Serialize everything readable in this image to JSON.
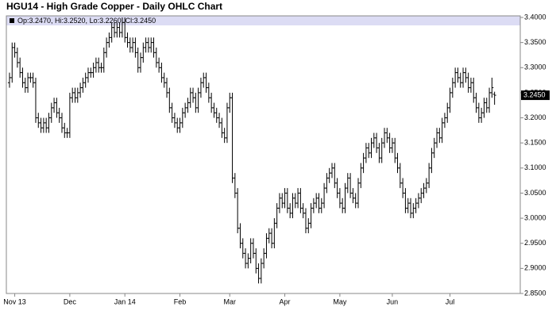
{
  "chart_data": {
    "type": "ohlc",
    "title": "HGU14 - High Grade Copper - Daily OHLC Chart",
    "legend_text": "Op:3.2470, Hi:3.2520, Lo:3.2260, Cl:3.2450",
    "last_price": {
      "value": 3.245,
      "label": "3.2450"
    },
    "color": "#000000",
    "ylim": [
      2.85,
      3.4
    ],
    "yticks": [
      {
        "value": 2.85,
        "label": "2.8500"
      },
      {
        "value": 2.9,
        "label": "2.9000"
      },
      {
        "value": 2.95,
        "label": "2.9500"
      },
      {
        "value": 3.0,
        "label": "3.0000"
      },
      {
        "value": 3.05,
        "label": "3.0500"
      },
      {
        "value": 3.1,
        "label": "3.1000"
      },
      {
        "value": 3.15,
        "label": "3.1500"
      },
      {
        "value": 3.2,
        "label": "3.2000"
      },
      {
        "value": 3.25,
        "label": "3.2500"
      },
      {
        "value": 3.3,
        "label": "3.3000"
      },
      {
        "value": 3.35,
        "label": "3.3500"
      },
      {
        "value": 3.4,
        "label": "3.4000"
      }
    ],
    "xlim": [
      -1.2,
      194.8
    ],
    "xticks": [
      {
        "value": 2,
        "label": "Nov 13"
      },
      {
        "value": 23,
        "label": "Dec"
      },
      {
        "value": 44,
        "label": "Jan 14"
      },
      {
        "value": 65,
        "label": "Feb"
      },
      {
        "value": 84,
        "label": "Mar"
      },
      {
        "value": 105,
        "label": "Apr"
      },
      {
        "value": 126,
        "label": "May"
      },
      {
        "value": 146,
        "label": "Jun"
      },
      {
        "value": 168,
        "label": "Jul"
      }
    ],
    "ohlc": [
      [
        3.27,
        3.29,
        3.26,
        3.28
      ],
      [
        3.28,
        3.35,
        3.27,
        3.34
      ],
      [
        3.34,
        3.35,
        3.32,
        3.33
      ],
      [
        3.33,
        3.34,
        3.3,
        3.31
      ],
      [
        3.31,
        3.32,
        3.28,
        3.29
      ],
      [
        3.29,
        3.3,
        3.26,
        3.27
      ],
      [
        3.27,
        3.28,
        3.25,
        3.26
      ],
      [
        3.26,
        3.29,
        3.25,
        3.28
      ],
      [
        3.28,
        3.29,
        3.27,
        3.28
      ],
      [
        3.28,
        3.29,
        3.26,
        3.27
      ],
      [
        3.27,
        3.28,
        3.19,
        3.2
      ],
      [
        3.2,
        3.21,
        3.18,
        3.19
      ],
      [
        3.19,
        3.2,
        3.17,
        3.18
      ],
      [
        3.18,
        3.2,
        3.17,
        3.19
      ],
      [
        3.19,
        3.2,
        3.17,
        3.18
      ],
      [
        3.18,
        3.21,
        3.17,
        3.2
      ],
      [
        3.2,
        3.23,
        3.19,
        3.22
      ],
      [
        3.22,
        3.24,
        3.21,
        3.23
      ],
      [
        3.23,
        3.24,
        3.2,
        3.21
      ],
      [
        3.21,
        3.22,
        3.19,
        3.2
      ],
      [
        3.2,
        3.21,
        3.17,
        3.18
      ],
      [
        3.18,
        3.19,
        3.16,
        3.17
      ],
      [
        3.17,
        3.18,
        3.16,
        3.17
      ],
      [
        3.17,
        3.25,
        3.16,
        3.24
      ],
      [
        3.24,
        3.26,
        3.23,
        3.25
      ],
      [
        3.25,
        3.26,
        3.23,
        3.24
      ],
      [
        3.24,
        3.26,
        3.23,
        3.25
      ],
      [
        3.25,
        3.27,
        3.24,
        3.26
      ],
      [
        3.26,
        3.28,
        3.25,
        3.27
      ],
      [
        3.27,
        3.29,
        3.26,
        3.28
      ],
      [
        3.28,
        3.3,
        3.27,
        3.29
      ],
      [
        3.29,
        3.3,
        3.28,
        3.29
      ],
      [
        3.29,
        3.31,
        3.28,
        3.3
      ],
      [
        3.3,
        3.32,
        3.29,
        3.31
      ],
      [
        3.31,
        3.32,
        3.29,
        3.3
      ],
      [
        3.3,
        3.31,
        3.29,
        3.3
      ],
      [
        3.3,
        3.34,
        3.29,
        3.33
      ],
      [
        3.33,
        3.36,
        3.32,
        3.35
      ],
      [
        3.35,
        3.37,
        3.34,
        3.36
      ],
      [
        3.36,
        3.39,
        3.35,
        3.38
      ],
      [
        3.38,
        3.39,
        3.36,
        3.37
      ],
      [
        3.37,
        3.39,
        3.36,
        3.38
      ],
      [
        3.38,
        3.39,
        3.36,
        3.37
      ],
      [
        3.37,
        3.4,
        3.36,
        3.39
      ],
      [
        3.39,
        3.4,
        3.35,
        3.36
      ],
      [
        3.36,
        3.37,
        3.34,
        3.35
      ],
      [
        3.35,
        3.36,
        3.33,
        3.34
      ],
      [
        3.34,
        3.36,
        3.33,
        3.35
      ],
      [
        3.35,
        3.36,
        3.32,
        3.33
      ],
      [
        3.33,
        3.34,
        3.29,
        3.3
      ],
      [
        3.3,
        3.33,
        3.29,
        3.32
      ],
      [
        3.32,
        3.35,
        3.31,
        3.34
      ],
      [
        3.34,
        3.36,
        3.33,
        3.35
      ],
      [
        3.35,
        3.36,
        3.33,
        3.34
      ],
      [
        3.34,
        3.36,
        3.33,
        3.35
      ],
      [
        3.35,
        3.36,
        3.32,
        3.33
      ],
      [
        3.33,
        3.34,
        3.3,
        3.31
      ],
      [
        3.31,
        3.32,
        3.29,
        3.3
      ],
      [
        3.3,
        3.31,
        3.27,
        3.28
      ],
      [
        3.28,
        3.29,
        3.26,
        3.27
      ],
      [
        3.27,
        3.28,
        3.24,
        3.25
      ],
      [
        3.25,
        3.26,
        3.21,
        3.22
      ],
      [
        3.22,
        3.23,
        3.19,
        3.2
      ],
      [
        3.2,
        3.21,
        3.18,
        3.19
      ],
      [
        3.19,
        3.2,
        3.17,
        3.18
      ],
      [
        3.18,
        3.2,
        3.17,
        3.19
      ],
      [
        3.19,
        3.22,
        3.18,
        3.21
      ],
      [
        3.21,
        3.23,
        3.2,
        3.22
      ],
      [
        3.22,
        3.24,
        3.21,
        3.23
      ],
      [
        3.23,
        3.26,
        3.22,
        3.25
      ],
      [
        3.25,
        3.26,
        3.23,
        3.24
      ],
      [
        3.24,
        3.25,
        3.21,
        3.22
      ],
      [
        3.22,
        3.26,
        3.21,
        3.25
      ],
      [
        3.25,
        3.28,
        3.24,
        3.27
      ],
      [
        3.27,
        3.29,
        3.26,
        3.28
      ],
      [
        3.28,
        3.29,
        3.25,
        3.26
      ],
      [
        3.26,
        3.27,
        3.23,
        3.24
      ],
      [
        3.24,
        3.25,
        3.21,
        3.22
      ],
      [
        3.22,
        3.23,
        3.2,
        3.21
      ],
      [
        3.21,
        3.22,
        3.19,
        3.2
      ],
      [
        3.2,
        3.21,
        3.18,
        3.19
      ],
      [
        3.19,
        3.2,
        3.16,
        3.17
      ],
      [
        3.17,
        3.18,
        3.15,
        3.16
      ],
      [
        3.16,
        3.23,
        3.15,
        3.22
      ],
      [
        3.22,
        3.25,
        3.21,
        3.24
      ],
      [
        3.24,
        3.25,
        3.07,
        3.08
      ],
      [
        3.08,
        3.09,
        3.04,
        3.05
      ],
      [
        3.05,
        3.06,
        2.97,
        2.98
      ],
      [
        2.98,
        2.99,
        2.94,
        2.95
      ],
      [
        2.95,
        2.96,
        2.92,
        2.93
      ],
      [
        2.93,
        2.94,
        2.9,
        2.91
      ],
      [
        2.91,
        2.93,
        2.9,
        2.92
      ],
      [
        2.92,
        2.96,
        2.91,
        2.95
      ],
      [
        2.95,
        2.96,
        2.92,
        2.93
      ],
      [
        2.93,
        2.94,
        2.89,
        2.9
      ],
      [
        2.9,
        2.91,
        2.87,
        2.88
      ],
      [
        2.88,
        2.92,
        2.87,
        2.91
      ],
      [
        2.91,
        2.94,
        2.9,
        2.93
      ],
      [
        2.93,
        2.97,
        2.92,
        2.96
      ],
      [
        2.96,
        2.98,
        2.95,
        2.97
      ],
      [
        2.97,
        2.98,
        2.94,
        2.95
      ],
      [
        2.95,
        3.0,
        2.94,
        2.99
      ],
      [
        2.99,
        3.03,
        2.98,
        3.02
      ],
      [
        3.02,
        3.05,
        3.01,
        3.04
      ],
      [
        3.04,
        3.05,
        3.02,
        3.03
      ],
      [
        3.03,
        3.06,
        3.02,
        3.05
      ],
      [
        3.05,
        3.06,
        3.01,
        3.02
      ],
      [
        3.02,
        3.03,
        3.0,
        3.01
      ],
      [
        3.01,
        3.05,
        3.0,
        3.04
      ],
      [
        3.04,
        3.05,
        3.02,
        3.03
      ],
      [
        3.03,
        3.06,
        3.02,
        3.05
      ],
      [
        3.05,
        3.06,
        3.01,
        3.02
      ],
      [
        3.02,
        3.03,
        3.0,
        3.01
      ],
      [
        3.01,
        3.02,
        2.97,
        2.98
      ],
      [
        2.98,
        3.0,
        2.97,
        2.99
      ],
      [
        2.99,
        3.03,
        2.98,
        3.02
      ],
      [
        3.02,
        3.04,
        3.01,
        3.03
      ],
      [
        3.03,
        3.05,
        3.02,
        3.04
      ],
      [
        3.04,
        3.05,
        3.01,
        3.02
      ],
      [
        3.02,
        3.04,
        3.01,
        3.03
      ],
      [
        3.03,
        3.07,
        3.02,
        3.06
      ],
      [
        3.06,
        3.09,
        3.05,
        3.08
      ],
      [
        3.08,
        3.1,
        3.07,
        3.09
      ],
      [
        3.09,
        3.11,
        3.08,
        3.1
      ],
      [
        3.1,
        3.11,
        3.06,
        3.07
      ],
      [
        3.07,
        3.08,
        3.04,
        3.05
      ],
      [
        3.05,
        3.06,
        3.02,
        3.03
      ],
      [
        3.03,
        3.04,
        3.01,
        3.02
      ],
      [
        3.02,
        3.07,
        3.01,
        3.06
      ],
      [
        3.06,
        3.09,
        3.05,
        3.08
      ],
      [
        3.08,
        3.09,
        3.04,
        3.05
      ],
      [
        3.05,
        3.06,
        3.03,
        3.04
      ],
      [
        3.04,
        3.05,
        3.02,
        3.03
      ],
      [
        3.03,
        3.08,
        3.02,
        3.07
      ],
      [
        3.07,
        3.11,
        3.06,
        3.1
      ],
      [
        3.1,
        3.13,
        3.09,
        3.12
      ],
      [
        3.12,
        3.15,
        3.11,
        3.14
      ],
      [
        3.14,
        3.15,
        3.12,
        3.13
      ],
      [
        3.13,
        3.16,
        3.12,
        3.15
      ],
      [
        3.15,
        3.17,
        3.14,
        3.16
      ],
      [
        3.16,
        3.17,
        3.13,
        3.14
      ],
      [
        3.14,
        3.15,
        3.11,
        3.12
      ],
      [
        3.12,
        3.16,
        3.11,
        3.15
      ],
      [
        3.15,
        3.18,
        3.14,
        3.17
      ],
      [
        3.17,
        3.18,
        3.15,
        3.16
      ],
      [
        3.16,
        3.17,
        3.13,
        3.14
      ],
      [
        3.14,
        3.16,
        3.13,
        3.15
      ],
      [
        3.15,
        3.16,
        3.11,
        3.12
      ],
      [
        3.12,
        3.13,
        3.09,
        3.1
      ],
      [
        3.1,
        3.11,
        3.06,
        3.07
      ],
      [
        3.07,
        3.08,
        3.04,
        3.05
      ],
      [
        3.05,
        3.06,
        3.01,
        3.02
      ],
      [
        3.02,
        3.04,
        3.01,
        3.03
      ],
      [
        3.03,
        3.04,
        3.0,
        3.01
      ],
      [
        3.01,
        3.03,
        3.0,
        3.02
      ],
      [
        3.02,
        3.04,
        3.01,
        3.03
      ],
      [
        3.03,
        3.05,
        3.02,
        3.04
      ],
      [
        3.04,
        3.06,
        3.03,
        3.05
      ],
      [
        3.05,
        3.07,
        3.04,
        3.06
      ],
      [
        3.06,
        3.08,
        3.05,
        3.07
      ],
      [
        3.07,
        3.11,
        3.06,
        3.1
      ],
      [
        3.1,
        3.14,
        3.09,
        3.13
      ],
      [
        3.13,
        3.16,
        3.12,
        3.15
      ],
      [
        3.15,
        3.18,
        3.14,
        3.17
      ],
      [
        3.17,
        3.18,
        3.15,
        3.16
      ],
      [
        3.16,
        3.2,
        3.15,
        3.19
      ],
      [
        3.19,
        3.21,
        3.18,
        3.2
      ],
      [
        3.2,
        3.23,
        3.19,
        3.22
      ],
      [
        3.22,
        3.26,
        3.21,
        3.25
      ],
      [
        3.25,
        3.28,
        3.24,
        3.27
      ],
      [
        3.27,
        3.3,
        3.26,
        3.29
      ],
      [
        3.29,
        3.3,
        3.27,
        3.28
      ],
      [
        3.28,
        3.29,
        3.26,
        3.27
      ],
      [
        3.27,
        3.3,
        3.26,
        3.29
      ],
      [
        3.29,
        3.3,
        3.27,
        3.28
      ],
      [
        3.28,
        3.29,
        3.25,
        3.26
      ],
      [
        3.26,
        3.28,
        3.25,
        3.27
      ],
      [
        3.27,
        3.28,
        3.23,
        3.24
      ],
      [
        3.24,
        3.25,
        3.21,
        3.22
      ],
      [
        3.22,
        3.23,
        3.19,
        3.2
      ],
      [
        3.2,
        3.22,
        3.19,
        3.21
      ],
      [
        3.21,
        3.24,
        3.2,
        3.23
      ],
      [
        3.23,
        3.24,
        3.21,
        3.22
      ],
      [
        3.22,
        3.26,
        3.21,
        3.25
      ],
      [
        3.25,
        3.28,
        3.24,
        3.26
      ],
      [
        3.247,
        3.252,
        3.226,
        3.245
      ]
    ]
  }
}
